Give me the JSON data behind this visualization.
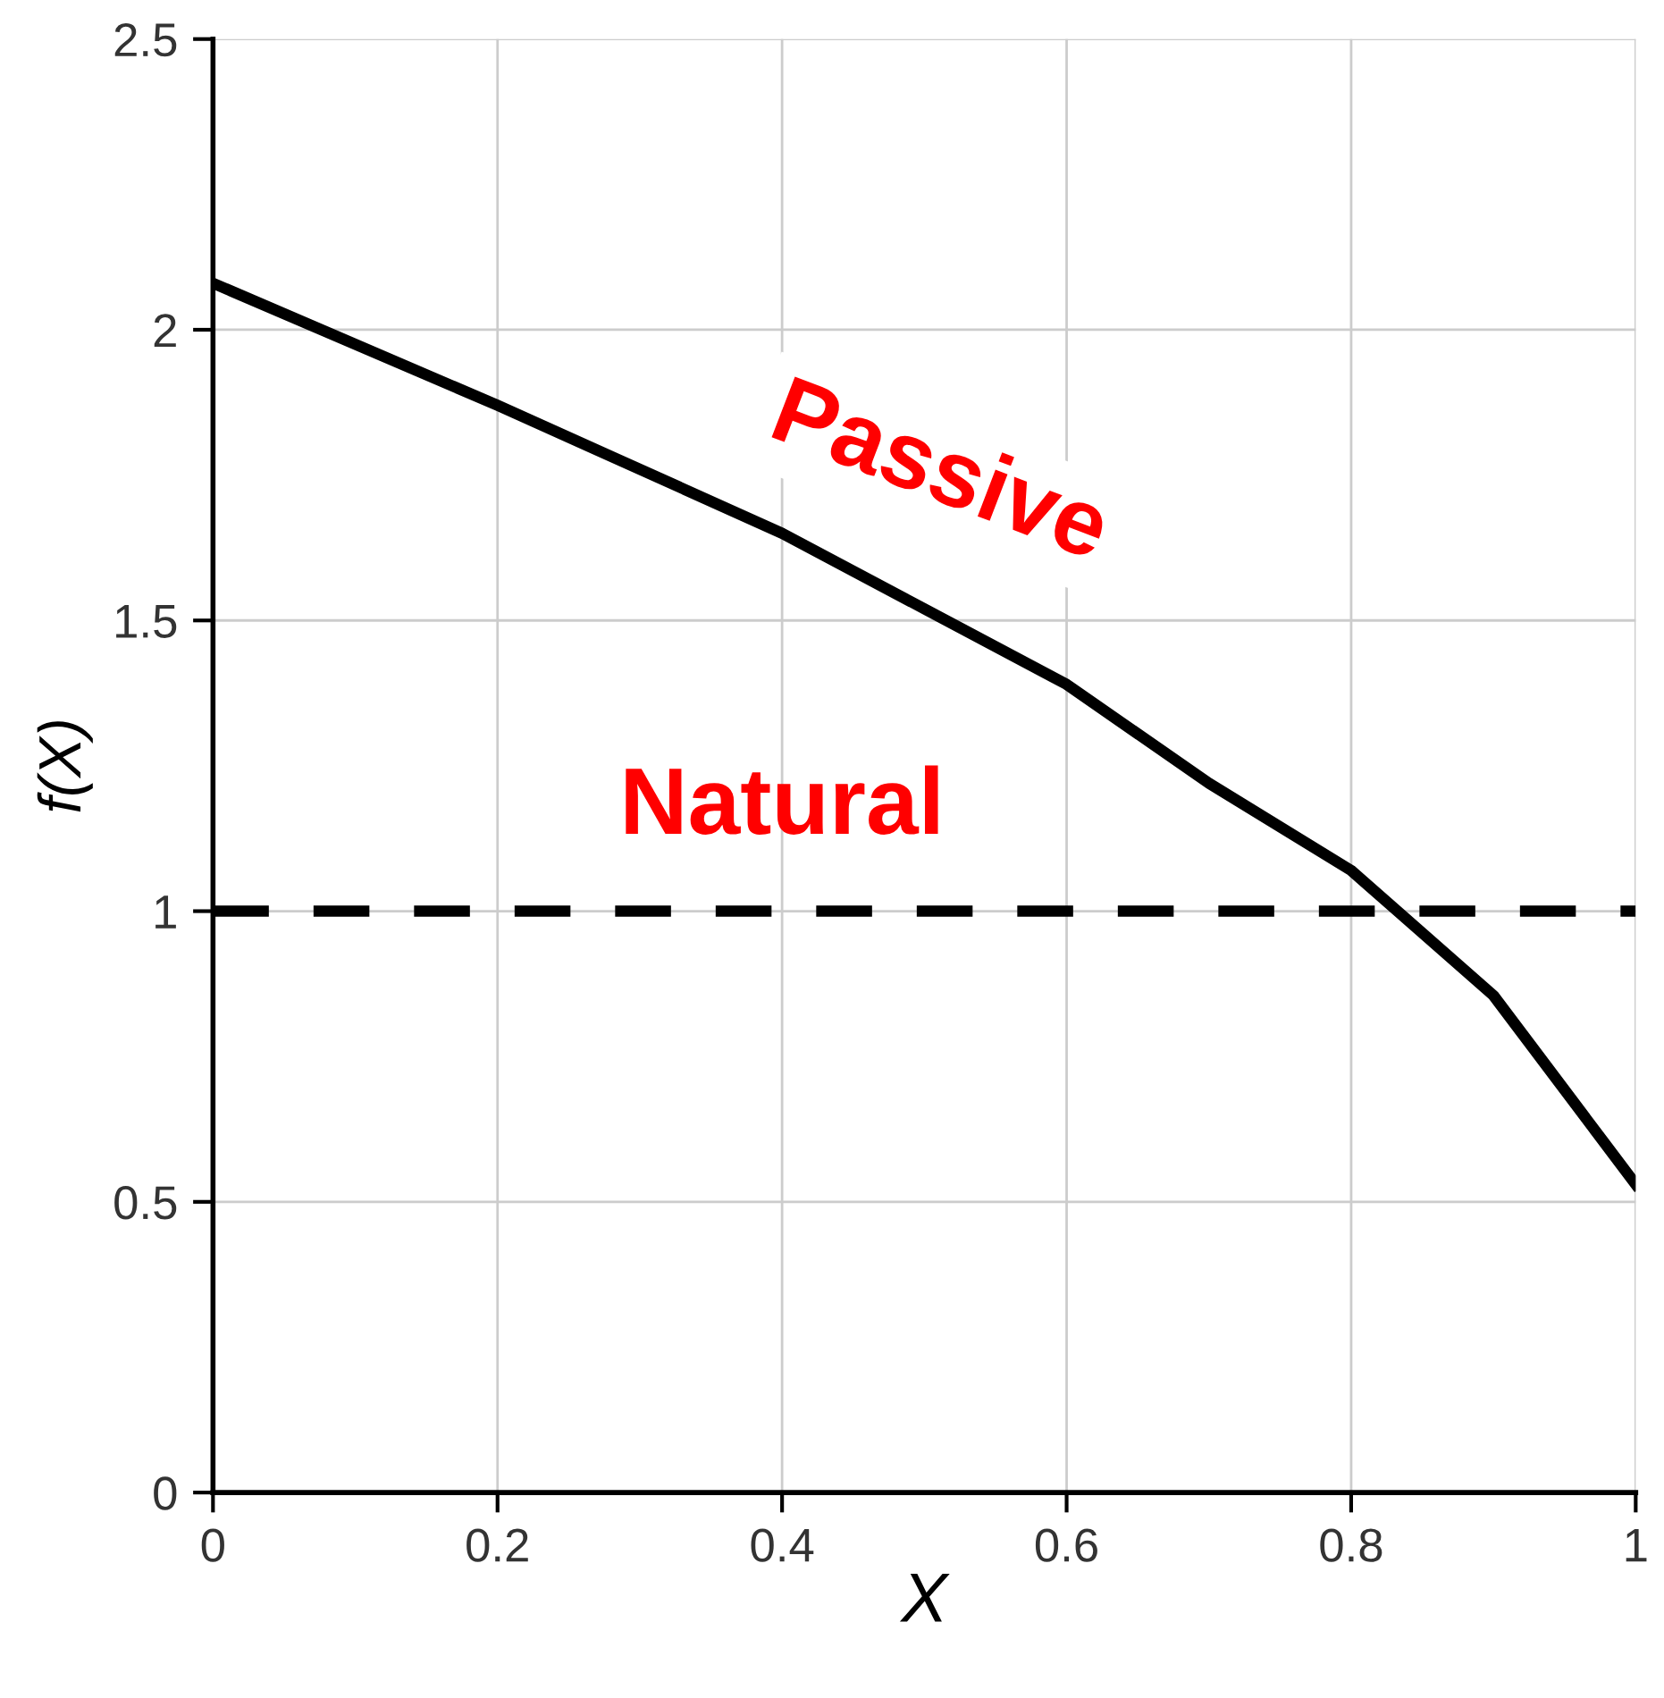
{
  "chart_data": {
    "type": "line",
    "xlabel": "X",
    "ylabel": "f(X)",
    "x": [
      0,
      0.2,
      0.4,
      0.5,
      0.6,
      0.7,
      0.8,
      0.9,
      1.0
    ],
    "series": [
      {
        "color": "#000000",
        "values": [
          2.08,
          1.87,
          1.65,
          1.52,
          1.39,
          1.22,
          1.07,
          0.855,
          0.53
        ]
      }
    ],
    "xlim": [
      0,
      1
    ],
    "ylim": [
      0,
      2.5
    ],
    "xticks": [
      0,
      0.2,
      0.4,
      0.6,
      0.8,
      1
    ],
    "yticks": [
      0,
      0.5,
      1,
      1.5,
      2,
      2.5
    ],
    "grid": true,
    "line_style": "solid",
    "marker": "none",
    "ref_lines": [
      {
        "axis": "y",
        "value": 1,
        "color": "#000000",
        "line_style": "dashed"
      }
    ],
    "annotations": [
      "Passive",
      "Natural"
    ]
  }
}
